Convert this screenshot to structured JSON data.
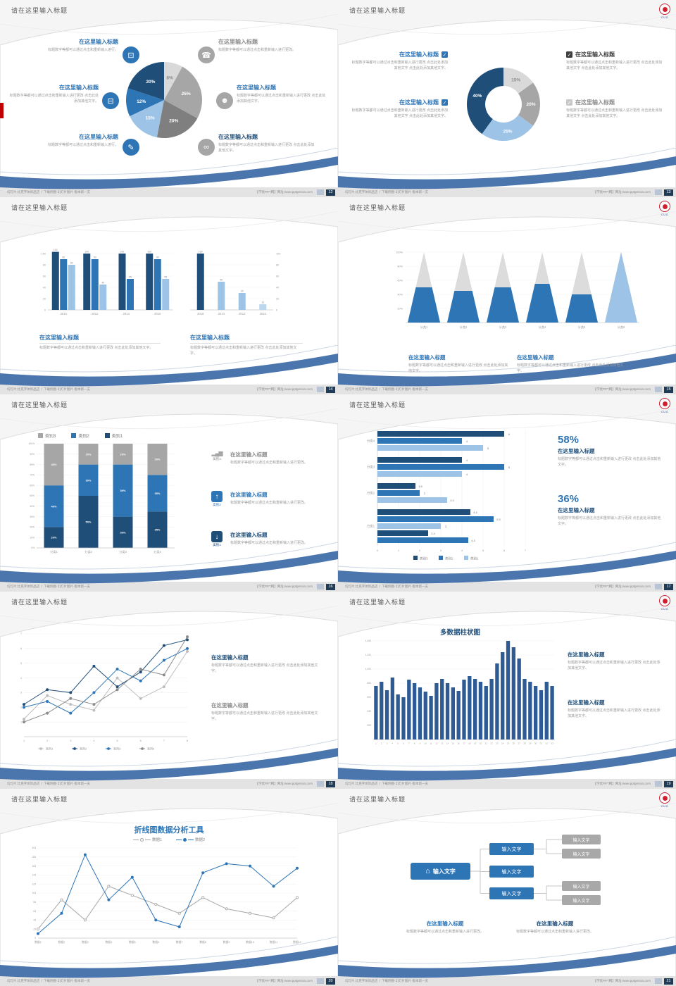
{
  "common": {
    "slide_title": "请在这里输入标题",
    "ph_title": "在这里输入标题",
    "body_s": "标题数字等都可以通过点击和重新输入进行。",
    "body_m": "标题数字等都可以通过点击和重新输入进行更改。",
    "body_l": "标题数字等都可以通过点击和重新输入进行更改 点击此处添加其他文字。",
    "body_xl": "标题数字等都可以通过点击和重新输入进行更改 点击此处添加其他文字 点击此处添加其他文字。",
    "footer_left": "幻灯片:比克字体饰品店 丨下载例图·幻灯片图片·版本第一支",
    "footer_site": "【学优PPT网】网址:www.pptgenius.com",
    "logo_text": "CUG",
    "input_label": "输入文字"
  },
  "pages": [
    "12",
    "13",
    "14",
    "15",
    "16",
    "17",
    "18",
    "19",
    "20",
    "21"
  ],
  "icons": {
    "monitor": "⊡",
    "phone": "☎",
    "car": "⊟",
    "people": "☻",
    "book": "✎",
    "bike": "∞",
    "home": "⌂",
    "arrow_up": "↑",
    "arrow_down": "↓",
    "bars": "▂▄▆",
    "check": "✓"
  },
  "slide17": {
    "stat1": "58%",
    "stat2": "36%"
  },
  "chart_data": [
    {
      "id": "pie12",
      "type": "pie",
      "values": [
        8,
        25,
        20,
        15,
        12,
        20
      ],
      "labels": [
        "8%",
        "25%",
        "20%",
        "15%",
        "12%",
        "20%"
      ],
      "colors": [
        "#d9d9d9",
        "#a6a6a6",
        "#7f7f7f",
        "#9dc3e6",
        "#2e75b6",
        "#1f4e79"
      ],
      "label_colors": [
        "#8c8c8c",
        "#ffffff",
        "#ffffff",
        "#ffffff",
        "#ffffff",
        "#ffffff"
      ]
    },
    {
      "id": "donut13",
      "type": "pie",
      "values": [
        15,
        20,
        25,
        40
      ],
      "labels": [
        "15%",
        "20%",
        "25%",
        "40%"
      ],
      "colors": [
        "#d9d9d9",
        "#a6a6a6",
        "#9dc3e6",
        "#1f4e79"
      ],
      "label_colors": [
        "#8c8c8c",
        "#ffffff",
        "#ffffff",
        "#ffffff"
      ]
    },
    {
      "id": "bars14a",
      "type": "bar",
      "categories": [
        "2010",
        "2012",
        "2014",
        "2016"
      ],
      "groups": [
        [
          103,
          90,
          80
        ],
        [
          100,
          90,
          45
        ],
        [
          100,
          55
        ],
        [
          100,
          90,
          55
        ]
      ],
      "colors": [
        "#1f4e79",
        "#2e75b6",
        "#9dc3e6"
      ],
      "ymax": 110,
      "yticks": [
        0,
        20,
        40,
        60,
        80,
        100
      ]
    },
    {
      "id": "bars14b",
      "type": "bar",
      "categories": [
        "2016",
        "2014",
        "2012",
        "2010"
      ],
      "groups": [
        [
          100
        ],
        [
          50
        ],
        [
          30
        ],
        [
          10
        ]
      ],
      "colors": [
        "#1f4e79",
        "#9dc3e6",
        "#9dc3e6",
        "#bdd7ee"
      ],
      "color_per_group": true,
      "ymax": 110,
      "yticks": [
        0,
        20,
        40,
        60,
        80,
        100
      ],
      "axis_right": true
    },
    {
      "id": "cones15",
      "type": "cone",
      "categories": [
        "分类1",
        "分类2",
        "分类3",
        "分类4",
        "分类5",
        "分类6"
      ],
      "blue_fraction": [
        0.5,
        0.45,
        0.5,
        0.55,
        0.4,
        1
      ],
      "bottom_colors": [
        "#2e75b6",
        "#2e75b6",
        "#2e75b6",
        "#2e75b6",
        "#2e75b6",
        "#9dc3e6"
      ],
      "top_color": "#dcdcdc",
      "yticks": [
        "20%",
        "40%",
        "60%",
        "80%",
        "100%"
      ]
    },
    {
      "id": "stack16",
      "type": "stacked-bar",
      "categories": [
        "分类1",
        "分类2",
        "分类3",
        "分类4"
      ],
      "series": [
        {
          "name": "类别1",
          "color": "#1f4e79",
          "values": [
            20,
            50,
            30,
            35
          ]
        },
        {
          "name": "类别2",
          "color": "#2e75b6",
          "values": [
            40,
            30,
            50,
            35
          ]
        },
        {
          "name": "类别3",
          "color": "#a6a6a6",
          "values": [
            40,
            20,
            20,
            30
          ]
        }
      ],
      "legend_order": [
        "类别3",
        "类别2",
        "类别1"
      ],
      "ymax": 100
    },
    {
      "id": "hbars17",
      "type": "hbar",
      "categories": [
        "分类4",
        "分类3",
        "分类2",
        "分类1"
      ],
      "groups": [
        [
          6,
          4,
          5
        ],
        [
          4,
          6,
          4
        ],
        [
          1.8,
          2,
          3.3
        ],
        [
          4.4,
          5.5,
          3,
          2.4,
          4.3
        ]
      ],
      "colors": [
        "#1f4e79",
        "#2e75b6",
        "#9dc3e6"
      ],
      "xmax": 7,
      "xticks": [
        0,
        1,
        2,
        3,
        4,
        5,
        6,
        7
      ],
      "legend": [
        {
          "name": "类别3",
          "color": "#1f4e79"
        },
        {
          "name": "类别2",
          "color": "#2e75b6"
        },
        {
          "name": "类别1",
          "color": "#9dc3e6"
        }
      ]
    },
    {
      "id": "lines18",
      "type": "line",
      "x_labels": [
        "1",
        "2",
        "3",
        "4",
        "5",
        "6",
        "7",
        "8"
      ],
      "ymin": 0,
      "ymax": 7,
      "yticks": [
        1,
        2,
        3,
        4,
        5,
        6,
        7
      ],
      "legend_inside": true,
      "series": [
        {
          "name": "系列1",
          "color": "#bfbfbf",
          "values": [
            1.2,
            2.8,
            2.2,
            1.8,
            4,
            2.6,
            3.4,
            5.8
          ]
        },
        {
          "name": "系列2",
          "color": "#1f4e79",
          "values": [
            2.2,
            3.2,
            3,
            4.8,
            3.4,
            4.4,
            6.2,
            6.6
          ]
        },
        {
          "name": "系列3",
          "color": "#2e75b6",
          "values": [
            2,
            2.4,
            1.6,
            3,
            4.6,
            3.8,
            5.2,
            6
          ]
        },
        {
          "name": "系列4",
          "color": "#8c8c8c",
          "values": [
            1,
            1.6,
            2.6,
            2.2,
            3.2,
            4.6,
            4.2,
            6.8
          ]
        }
      ]
    },
    {
      "id": "cols19",
      "type": "column",
      "title": "多数据柱状图",
      "color": "#2f5b94",
      "ymin": 0,
      "ymax": 1400,
      "yticks": [
        200,
        400,
        600,
        800,
        1000,
        1200,
        1400
      ],
      "ytick_labels": [
        "200",
        "400",
        "600",
        "800",
        "1,000",
        "1,200",
        "1,400"
      ],
      "x_labels": [
        "1",
        "2",
        "3",
        "4",
        "5",
        "6",
        "7",
        "8",
        "9",
        "10",
        "11",
        "12",
        "13",
        "14",
        "15",
        "16",
        "17",
        "18",
        "19",
        "20",
        "21",
        "22",
        "23",
        "24",
        "25",
        "26",
        "27",
        "28",
        "29",
        "30",
        "31",
        "32",
        "33"
      ],
      "values": [
        760,
        820,
        700,
        880,
        640,
        600,
        850,
        800,
        740,
        680,
        620,
        800,
        860,
        800,
        740,
        690,
        850,
        900,
        860,
        820,
        760,
        860,
        1080,
        1240,
        1400,
        1310,
        1150,
        860,
        820,
        760,
        700,
        820,
        760
      ]
    },
    {
      "id": "lines20",
      "type": "line",
      "title": "折线图数据分析工具",
      "x_labels": [
        "数据1",
        "数据2",
        "数据3",
        "数据4",
        "数据5",
        "数据6",
        "数据7",
        "数据8",
        "数据9",
        "数据10",
        "数据11",
        "数据12"
      ],
      "ymin": 3,
      "ymax": 203,
      "yticks": [
        3,
        23,
        43,
        63,
        83,
        103,
        123,
        143,
        163,
        183,
        203
      ],
      "series": [
        {
          "name": "数据1",
          "color": "#a6a6a6",
          "open": true,
          "values": [
            23,
            88,
            43,
            118,
            98,
            78,
            58,
            93,
            68,
            58,
            48,
            93
          ]
        },
        {
          "name": "数据2",
          "color": "#2e75b6",
          "values": [
            13,
            58,
            188,
            88,
            138,
            43,
            28,
            148,
            168,
            163,
            118,
            158
          ]
        }
      ]
    }
  ]
}
